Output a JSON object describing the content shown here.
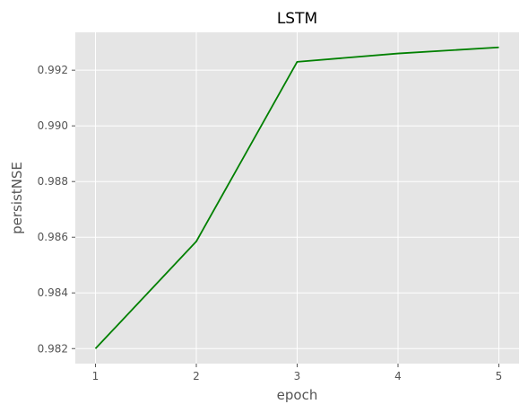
{
  "chart_data": {
    "type": "line",
    "title": "LSTM",
    "xlabel": "epoch",
    "ylabel": "persistNSE",
    "x": [
      1,
      2,
      3,
      4,
      5
    ],
    "series": [
      {
        "values": [
          0.982,
          0.98585,
          0.9923,
          0.9926,
          0.99282
        ],
        "color": "#008000"
      }
    ],
    "xticks": [
      1,
      2,
      3,
      4,
      5
    ],
    "xtick_labels": [
      "1",
      "2",
      "3",
      "4",
      "5"
    ],
    "yticks": [
      0.982,
      0.984,
      0.986,
      0.988,
      0.99,
      0.992
    ],
    "ytick_labels": [
      "0.982",
      "0.984",
      "0.986",
      "0.988",
      "0.990",
      "0.992"
    ],
    "xlim": [
      0.8,
      5.2
    ],
    "ylim": [
      0.98146,
      0.99336
    ],
    "grid": true,
    "style": {
      "background": "#e5e5e5",
      "grid_color": "#ffffff",
      "tick_color": "#555555"
    }
  }
}
